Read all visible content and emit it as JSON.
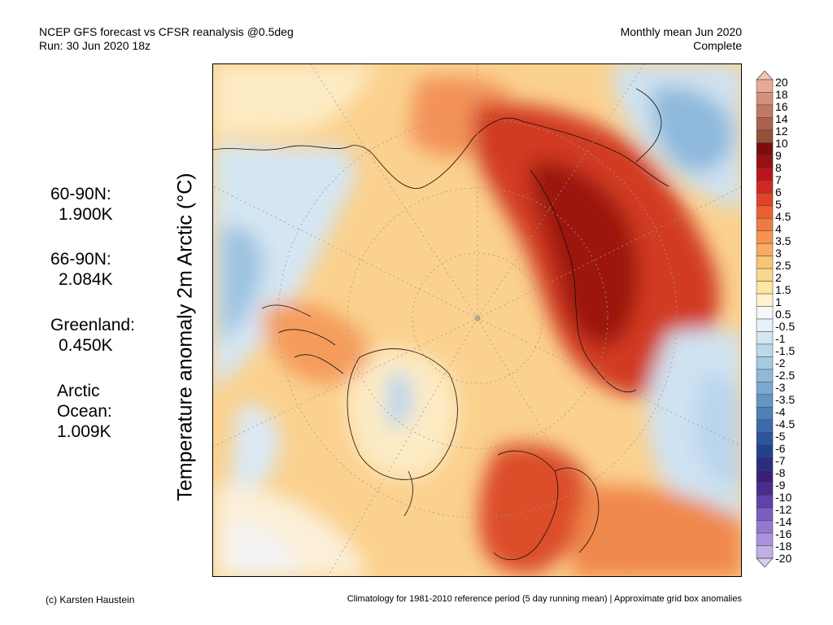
{
  "header": {
    "left_line1": "NCEP GFS forecast vs CFSR reanalysis @0.5deg",
    "left_line2": "Run: 30 Jun 2020 18z",
    "right_line1": "Monthly mean Jun 2020",
    "right_line2": "Complete"
  },
  "axis_label": "Temperature anomaly 2m Arctic (°C)",
  "stats": [
    {
      "label": "60-90N:",
      "value": "1.900K"
    },
    {
      "label": "66-90N:",
      "value": "2.084K"
    },
    {
      "label": "Greenland:",
      "value": "0.450K"
    },
    {
      "label_line1": "Arctic",
      "label_line2": "Ocean:",
      "value": "1.009K"
    }
  ],
  "colorbar": {
    "labels": [
      "20",
      "18",
      "16",
      "14",
      "12",
      "10",
      "9",
      "8",
      "7",
      "6",
      "5",
      "4.5",
      "4",
      "3.5",
      "3",
      "2.5",
      "2",
      "1.5",
      "1",
      "0.5",
      "-0.5",
      "-1",
      "-1.5",
      "-2",
      "-2.5",
      "-3",
      "-3.5",
      "-4",
      "-4.5",
      "-5",
      "-6",
      "-7",
      "-8",
      "-9",
      "-10",
      "-12",
      "-14",
      "-16",
      "-18",
      "-20"
    ],
    "colors": [
      "#f4c3b2",
      "#e6ab97",
      "#d3907a",
      "#c17964",
      "#ab624d",
      "#965038",
      "#7b0d10",
      "#9a0f12",
      "#b8161a",
      "#d02722",
      "#e0432a",
      "#ea5f34",
      "#f07a40",
      "#f4944d",
      "#f7ad60",
      "#f9c474",
      "#fbd78c",
      "#fde6a6",
      "#fef3cb",
      "#f7f7f7",
      "#e9f1f8",
      "#d3e5f1",
      "#bed8ea",
      "#a6c9e2",
      "#8fb9da",
      "#7aa8d0",
      "#6494c4",
      "#5080b8",
      "#3d6aaa",
      "#2d559c",
      "#24418c",
      "#2a2e7c",
      "#3a1f7a",
      "#4c2a90",
      "#6042a8",
      "#7a5ec0",
      "#9478d0",
      "#aa93dc",
      "#c0aee6",
      "#d6ccf0"
    ]
  },
  "footer": {
    "left": "(c) Karsten Haustein",
    "right": "Climatology for 1981-2010 reference period (5 day running mean) | Approximate grid box anomalies"
  }
}
